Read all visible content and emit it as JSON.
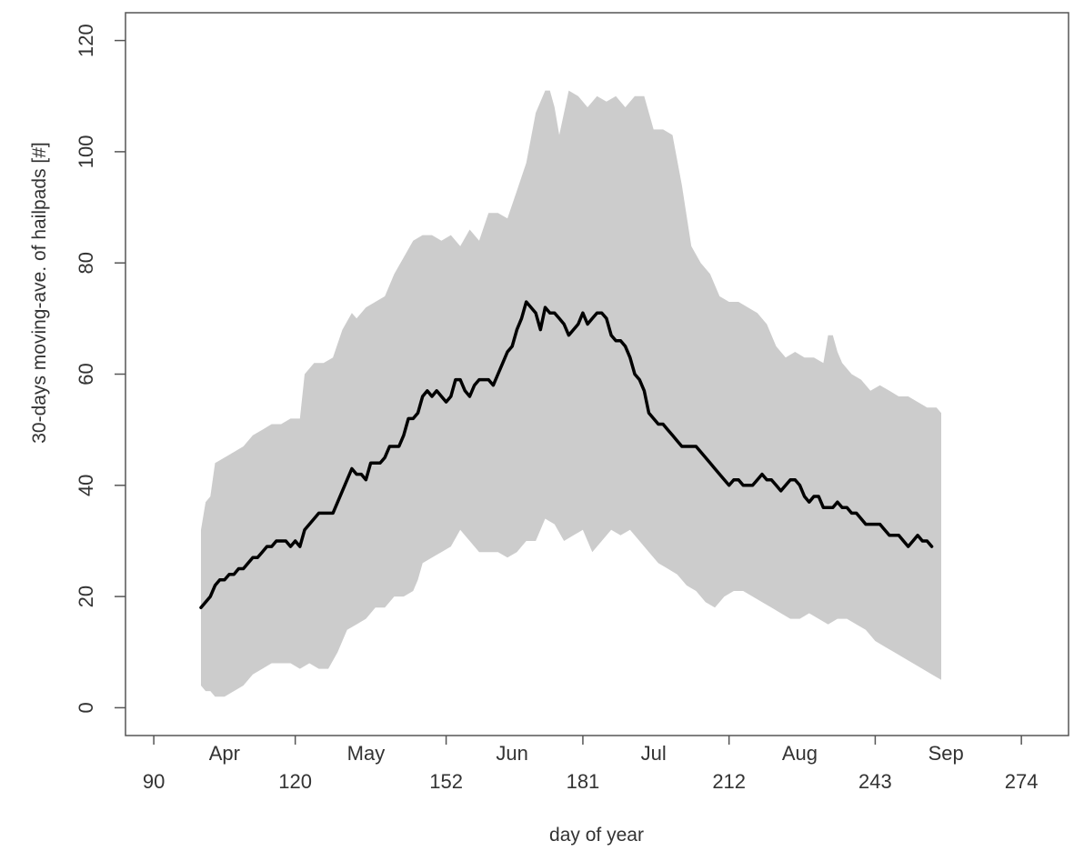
{
  "chart_data": {
    "type": "line",
    "xlabel": "day of year",
    "ylabel": "30-days moving-ave. of hailpads [#]",
    "xlim": [
      84,
      284
    ],
    "ylim": [
      -5,
      125
    ],
    "x_ticks": [
      90,
      120,
      152,
      181,
      212,
      243,
      274
    ],
    "y_ticks": [
      0,
      20,
      40,
      60,
      80,
      100,
      120
    ],
    "month_ticks": [
      {
        "label": "Apr",
        "x": 105
      },
      {
        "label": "May",
        "x": 135
      },
      {
        "label": "Jun",
        "x": 166
      },
      {
        "label": "Jul",
        "x": 196
      },
      {
        "label": "Aug",
        "x": 227
      },
      {
        "label": "Sep",
        "x": 258
      }
    ],
    "grid": false,
    "band": {
      "color": "#cccccc",
      "upper": [
        [
          100,
          32
        ],
        [
          101,
          37
        ],
        [
          102,
          38
        ],
        [
          103,
          44
        ],
        [
          105,
          45
        ],
        [
          107,
          46
        ],
        [
          109,
          47
        ],
        [
          111,
          49
        ],
        [
          113,
          50
        ],
        [
          115,
          51
        ],
        [
          117,
          51
        ],
        [
          119,
          52
        ],
        [
          121,
          52
        ],
        [
          122,
          60
        ],
        [
          123,
          61
        ],
        [
          124,
          62
        ],
        [
          126,
          62
        ],
        [
          128,
          63
        ],
        [
          130,
          68
        ],
        [
          132,
          71
        ],
        [
          133,
          70
        ],
        [
          135,
          72
        ],
        [
          137,
          73
        ],
        [
          139,
          74
        ],
        [
          141,
          78
        ],
        [
          143,
          81
        ],
        [
          145,
          84
        ],
        [
          147,
          85
        ],
        [
          149,
          85
        ],
        [
          151,
          84
        ],
        [
          153,
          85
        ],
        [
          155,
          83
        ],
        [
          157,
          86
        ],
        [
          159,
          84
        ],
        [
          161,
          89
        ],
        [
          163,
          89
        ],
        [
          165,
          88
        ],
        [
          167,
          93
        ],
        [
          169,
          98
        ],
        [
          171,
          107
        ],
        [
          173,
          111
        ],
        [
          174,
          111
        ],
        [
          175,
          108
        ],
        [
          176,
          103
        ],
        [
          178,
          111
        ],
        [
          180,
          110
        ],
        [
          182,
          108
        ],
        [
          184,
          110
        ],
        [
          186,
          109
        ],
        [
          188,
          110
        ],
        [
          190,
          108
        ],
        [
          192,
          110
        ],
        [
          194,
          110
        ],
        [
          196,
          104
        ],
        [
          198,
          104
        ],
        [
          200,
          103
        ],
        [
          202,
          94
        ],
        [
          204,
          83
        ],
        [
          206,
          80
        ],
        [
          208,
          78
        ],
        [
          210,
          74
        ],
        [
          212,
          73
        ],
        [
          214,
          73
        ],
        [
          216,
          72
        ],
        [
          218,
          71
        ],
        [
          220,
          69
        ],
        [
          222,
          65
        ],
        [
          224,
          63
        ],
        [
          226,
          64
        ],
        [
          228,
          63
        ],
        [
          230,
          63
        ],
        [
          232,
          62
        ],
        [
          233,
          67
        ],
        [
          234,
          67
        ],
        [
          235,
          64
        ],
        [
          236,
          62
        ],
        [
          238,
          60
        ],
        [
          240,
          59
        ],
        [
          242,
          57
        ],
        [
          244,
          58
        ],
        [
          246,
          57
        ],
        [
          248,
          56
        ],
        [
          250,
          56
        ],
        [
          252,
          55
        ],
        [
          254,
          54
        ],
        [
          256,
          54
        ],
        [
          257,
          53
        ]
      ],
      "lower": [
        [
          100,
          4
        ],
        [
          101,
          3
        ],
        [
          102,
          3
        ],
        [
          103,
          2
        ],
        [
          105,
          2
        ],
        [
          107,
          3
        ],
        [
          109,
          4
        ],
        [
          111,
          6
        ],
        [
          113,
          7
        ],
        [
          115,
          8
        ],
        [
          117,
          8
        ],
        [
          119,
          8
        ],
        [
          121,
          7
        ],
        [
          123,
          8
        ],
        [
          125,
          7
        ],
        [
          127,
          7
        ],
        [
          129,
          10
        ],
        [
          131,
          14
        ],
        [
          133,
          15
        ],
        [
          135,
          16
        ],
        [
          137,
          18
        ],
        [
          139,
          18
        ],
        [
          141,
          20
        ],
        [
          143,
          20
        ],
        [
          145,
          21
        ],
        [
          146,
          23
        ],
        [
          147,
          26
        ],
        [
          149,
          27
        ],
        [
          151,
          28
        ],
        [
          153,
          29
        ],
        [
          155,
          32
        ],
        [
          157,
          30
        ],
        [
          159,
          28
        ],
        [
          161,
          28
        ],
        [
          163,
          28
        ],
        [
          165,
          27
        ],
        [
          167,
          28
        ],
        [
          169,
          30
        ],
        [
          171,
          30
        ],
        [
          173,
          34
        ],
        [
          175,
          33
        ],
        [
          177,
          30
        ],
        [
          179,
          31
        ],
        [
          181,
          32
        ],
        [
          183,
          28
        ],
        [
          185,
          30
        ],
        [
          187,
          32
        ],
        [
          189,
          31
        ],
        [
          191,
          32
        ],
        [
          193,
          30
        ],
        [
          195,
          28
        ],
        [
          197,
          26
        ],
        [
          199,
          25
        ],
        [
          201,
          24
        ],
        [
          203,
          22
        ],
        [
          205,
          21
        ],
        [
          207,
          19
        ],
        [
          209,
          18
        ],
        [
          211,
          20
        ],
        [
          213,
          21
        ],
        [
          215,
          21
        ],
        [
          217,
          20
        ],
        [
          219,
          19
        ],
        [
          221,
          18
        ],
        [
          223,
          17
        ],
        [
          225,
          16
        ],
        [
          227,
          16
        ],
        [
          229,
          17
        ],
        [
          231,
          16
        ],
        [
          233,
          15
        ],
        [
          235,
          16
        ],
        [
          237,
          16
        ],
        [
          239,
          15
        ],
        [
          241,
          14
        ],
        [
          243,
          12
        ],
        [
          245,
          11
        ],
        [
          247,
          10
        ],
        [
          249,
          9
        ],
        [
          251,
          8
        ],
        [
          253,
          7
        ],
        [
          255,
          6
        ],
        [
          257,
          5
        ]
      ]
    },
    "series": [
      {
        "color": "#000000",
        "points": [
          [
            100,
            18
          ],
          [
            101,
            19
          ],
          [
            102,
            20
          ],
          [
            103,
            22
          ],
          [
            104,
            23
          ],
          [
            105,
            23
          ],
          [
            106,
            24
          ],
          [
            107,
            24
          ],
          [
            108,
            25
          ],
          [
            109,
            25
          ],
          [
            110,
            26
          ],
          [
            111,
            27
          ],
          [
            112,
            27
          ],
          [
            113,
            28
          ],
          [
            114,
            29
          ],
          [
            115,
            29
          ],
          [
            116,
            30
          ],
          [
            117,
            30
          ],
          [
            118,
            30
          ],
          [
            119,
            29
          ],
          [
            120,
            30
          ],
          [
            121,
            29
          ],
          [
            122,
            32
          ],
          [
            123,
            33
          ],
          [
            124,
            34
          ],
          [
            125,
            35
          ],
          [
            126,
            35
          ],
          [
            127,
            35
          ],
          [
            128,
            35
          ],
          [
            129,
            37
          ],
          [
            130,
            39
          ],
          [
            131,
            41
          ],
          [
            132,
            43
          ],
          [
            133,
            42
          ],
          [
            134,
            42
          ],
          [
            135,
            41
          ],
          [
            136,
            44
          ],
          [
            137,
            44
          ],
          [
            138,
            44
          ],
          [
            139,
            45
          ],
          [
            140,
            47
          ],
          [
            141,
            47
          ],
          [
            142,
            47
          ],
          [
            143,
            49
          ],
          [
            144,
            52
          ],
          [
            145,
            52
          ],
          [
            146,
            53
          ],
          [
            147,
            56
          ],
          [
            148,
            57
          ],
          [
            149,
            56
          ],
          [
            150,
            57
          ],
          [
            151,
            56
          ],
          [
            152,
            55
          ],
          [
            153,
            56
          ],
          [
            154,
            59
          ],
          [
            155,
            59
          ],
          [
            156,
            57
          ],
          [
            157,
            56
          ],
          [
            158,
            58
          ],
          [
            159,
            59
          ],
          [
            160,
            59
          ],
          [
            161,
            59
          ],
          [
            162,
            58
          ],
          [
            163,
            60
          ],
          [
            164,
            62
          ],
          [
            165,
            64
          ],
          [
            166,
            65
          ],
          [
            167,
            68
          ],
          [
            168,
            70
          ],
          [
            169,
            73
          ],
          [
            170,
            72
          ],
          [
            171,
            71
          ],
          [
            172,
            68
          ],
          [
            173,
            72
          ],
          [
            174,
            71
          ],
          [
            175,
            71
          ],
          [
            176,
            70
          ],
          [
            177,
            69
          ],
          [
            178,
            67
          ],
          [
            179,
            68
          ],
          [
            180,
            69
          ],
          [
            181,
            71
          ],
          [
            182,
            69
          ],
          [
            183,
            70
          ],
          [
            184,
            71
          ],
          [
            185,
            71
          ],
          [
            186,
            70
          ],
          [
            187,
            67
          ],
          [
            188,
            66
          ],
          [
            189,
            66
          ],
          [
            190,
            65
          ],
          [
            191,
            63
          ],
          [
            192,
            60
          ],
          [
            193,
            59
          ],
          [
            194,
            57
          ],
          [
            195,
            53
          ],
          [
            196,
            52
          ],
          [
            197,
            51
          ],
          [
            198,
            51
          ],
          [
            199,
            50
          ],
          [
            200,
            49
          ],
          [
            201,
            48
          ],
          [
            202,
            47
          ],
          [
            203,
            47
          ],
          [
            204,
            47
          ],
          [
            205,
            47
          ],
          [
            206,
            46
          ],
          [
            207,
            45
          ],
          [
            208,
            44
          ],
          [
            209,
            43
          ],
          [
            210,
            42
          ],
          [
            211,
            41
          ],
          [
            212,
            40
          ],
          [
            213,
            41
          ],
          [
            214,
            41
          ],
          [
            215,
            40
          ],
          [
            216,
            40
          ],
          [
            217,
            40
          ],
          [
            218,
            41
          ],
          [
            219,
            42
          ],
          [
            220,
            41
          ],
          [
            221,
            41
          ],
          [
            222,
            40
          ],
          [
            223,
            39
          ],
          [
            224,
            40
          ],
          [
            225,
            41
          ],
          [
            226,
            41
          ],
          [
            227,
            40
          ],
          [
            228,
            38
          ],
          [
            229,
            37
          ],
          [
            230,
            38
          ],
          [
            231,
            38
          ],
          [
            232,
            36
          ],
          [
            233,
            36
          ],
          [
            234,
            36
          ],
          [
            235,
            37
          ],
          [
            236,
            36
          ],
          [
            237,
            36
          ],
          [
            238,
            35
          ],
          [
            239,
            35
          ],
          [
            240,
            34
          ],
          [
            241,
            33
          ],
          [
            242,
            33
          ],
          [
            243,
            33
          ],
          [
            244,
            33
          ],
          [
            245,
            32
          ],
          [
            246,
            31
          ],
          [
            247,
            31
          ],
          [
            248,
            31
          ],
          [
            249,
            30
          ],
          [
            250,
            29
          ],
          [
            251,
            30
          ],
          [
            252,
            31
          ],
          [
            253,
            30
          ],
          [
            254,
            30
          ],
          [
            255,
            29
          ]
        ]
      }
    ]
  }
}
